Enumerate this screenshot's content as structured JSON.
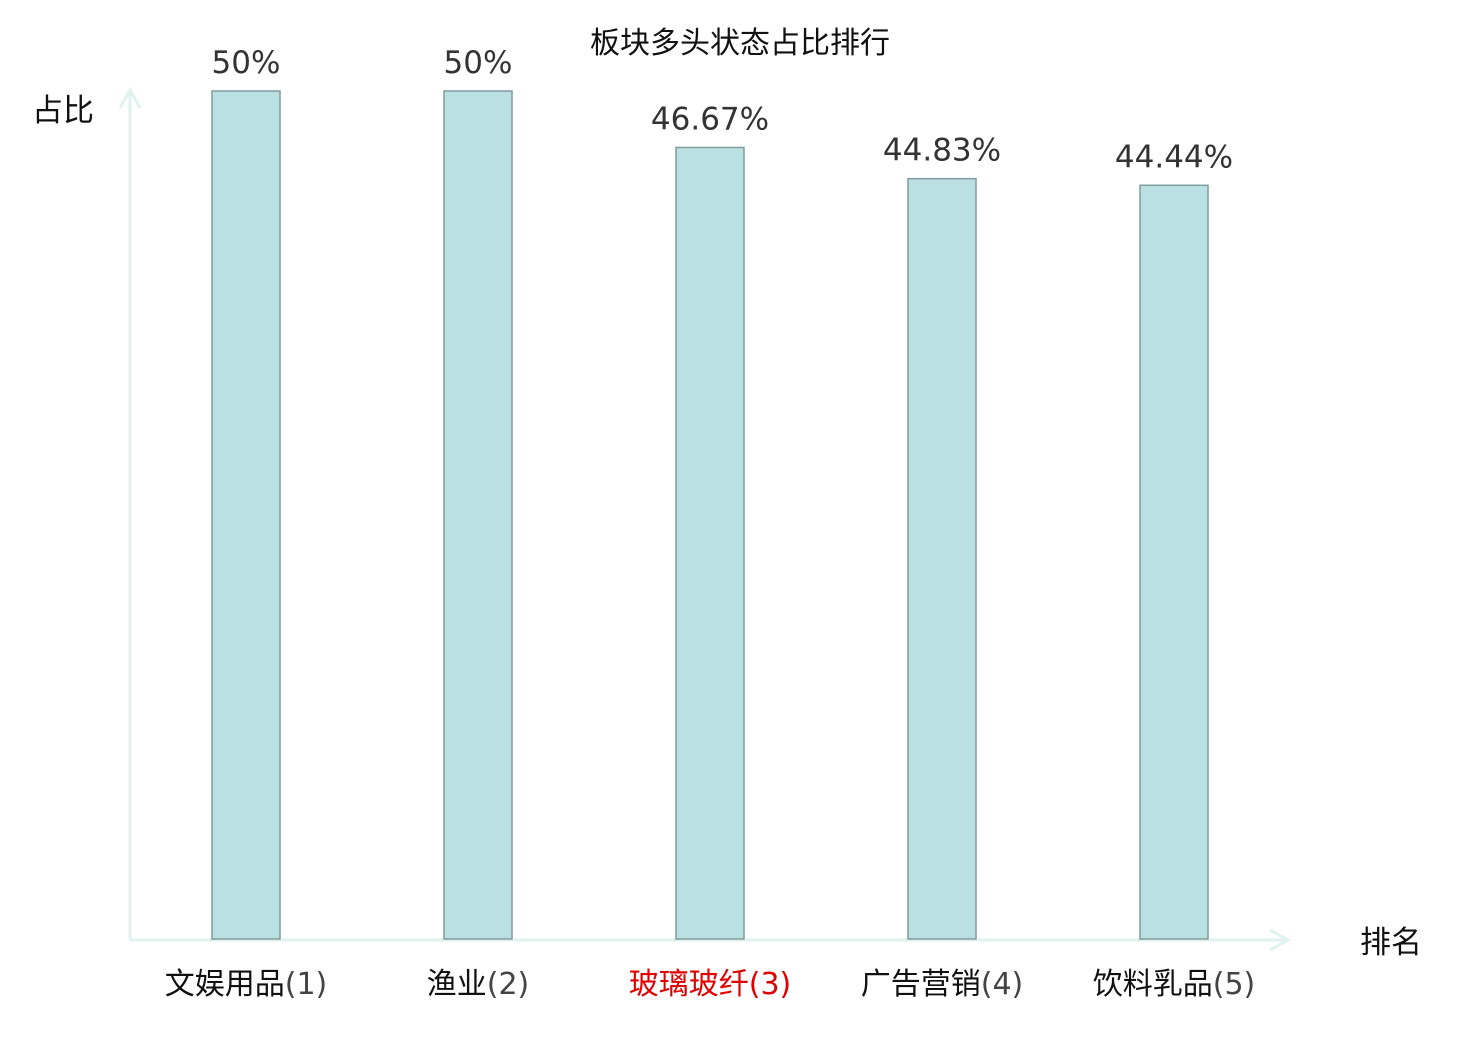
{
  "chart_data": {
    "type": "bar",
    "title": "板块多头状态占比排行",
    "ylabel": "占比",
    "xlabel": "排名",
    "ylim": [
      0,
      50
    ],
    "grid": false,
    "categories": [
      {
        "name": "文娱用品",
        "rank": "(1)",
        "highlight": false
      },
      {
        "name": "渔业",
        "rank": "(2)",
        "highlight": false
      },
      {
        "name": "玻璃玻纤",
        "rank": "(3)",
        "highlight": true
      },
      {
        "name": "广告营销",
        "rank": "(4)",
        "highlight": false
      },
      {
        "name": "饮料乳品",
        "rank": "(5)",
        "highlight": false
      }
    ],
    "values": [
      50,
      50,
      46.67,
      44.83,
      44.44
    ],
    "value_labels": [
      "50%",
      "50%",
      "46.67%",
      "44.83%",
      "44.44%"
    ]
  },
  "colors": {
    "bar_fill": "#bbe0e2",
    "bar_stroke": "#7f9c9e",
    "axis": "#e0f2ef",
    "highlight_text": "#e00000"
  }
}
